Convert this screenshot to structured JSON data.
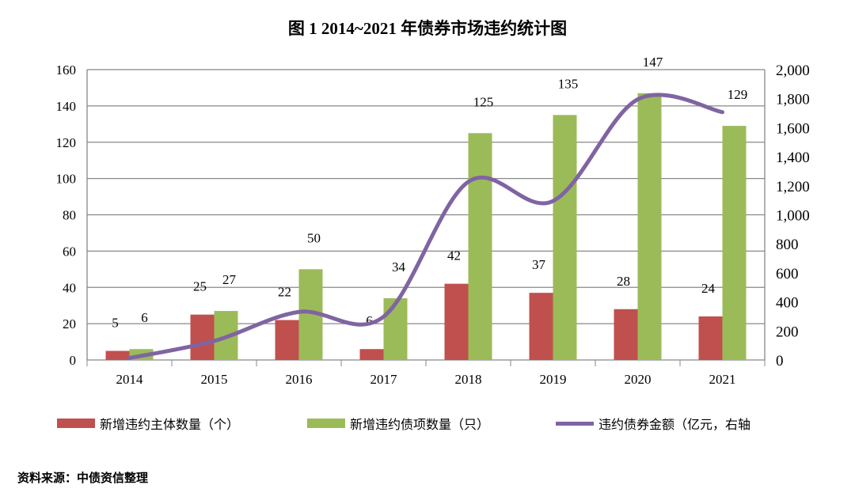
{
  "chart_data": {
    "type": "bar+line",
    "title": "图 1 2014~2021 年债券市场违约统计图",
    "categories": [
      "2014",
      "2015",
      "2016",
      "2017",
      "2018",
      "2019",
      "2020",
      "2021"
    ],
    "series": [
      {
        "name": "新增违约主体数量（个）",
        "type": "bar",
        "axis": "left",
        "color": "#C0504D",
        "values": [
          5,
          25,
          22,
          6,
          42,
          37,
          28,
          24
        ]
      },
      {
        "name": "新增违约债项数量（只）",
        "type": "bar",
        "axis": "left",
        "color": "#9BBB59",
        "values": [
          6,
          27,
          50,
          34,
          125,
          135,
          147,
          129
        ]
      },
      {
        "name": "违约债券金额（亿元，右轴",
        "type": "line",
        "axis": "right",
        "color": "#8064A2",
        "values": [
          13,
          131,
          331,
          298,
          1227,
          1095,
          1795,
          1707
        ]
      }
    ],
    "left_axis": {
      "ylim": [
        0,
        160
      ],
      "ticks": [
        "0",
        "20",
        "40",
        "60",
        "80",
        "100",
        "120",
        "140",
        "160"
      ]
    },
    "right_axis": {
      "ylim": [
        0,
        2000
      ],
      "ticks": [
        "0",
        "200",
        "400",
        "600",
        "800",
        "1,000",
        "1,200",
        "1,400",
        "1,600",
        "1,800",
        "2,000"
      ]
    },
    "grid": true,
    "legend": "bottom"
  },
  "source": "资料来源：中债资信整理"
}
